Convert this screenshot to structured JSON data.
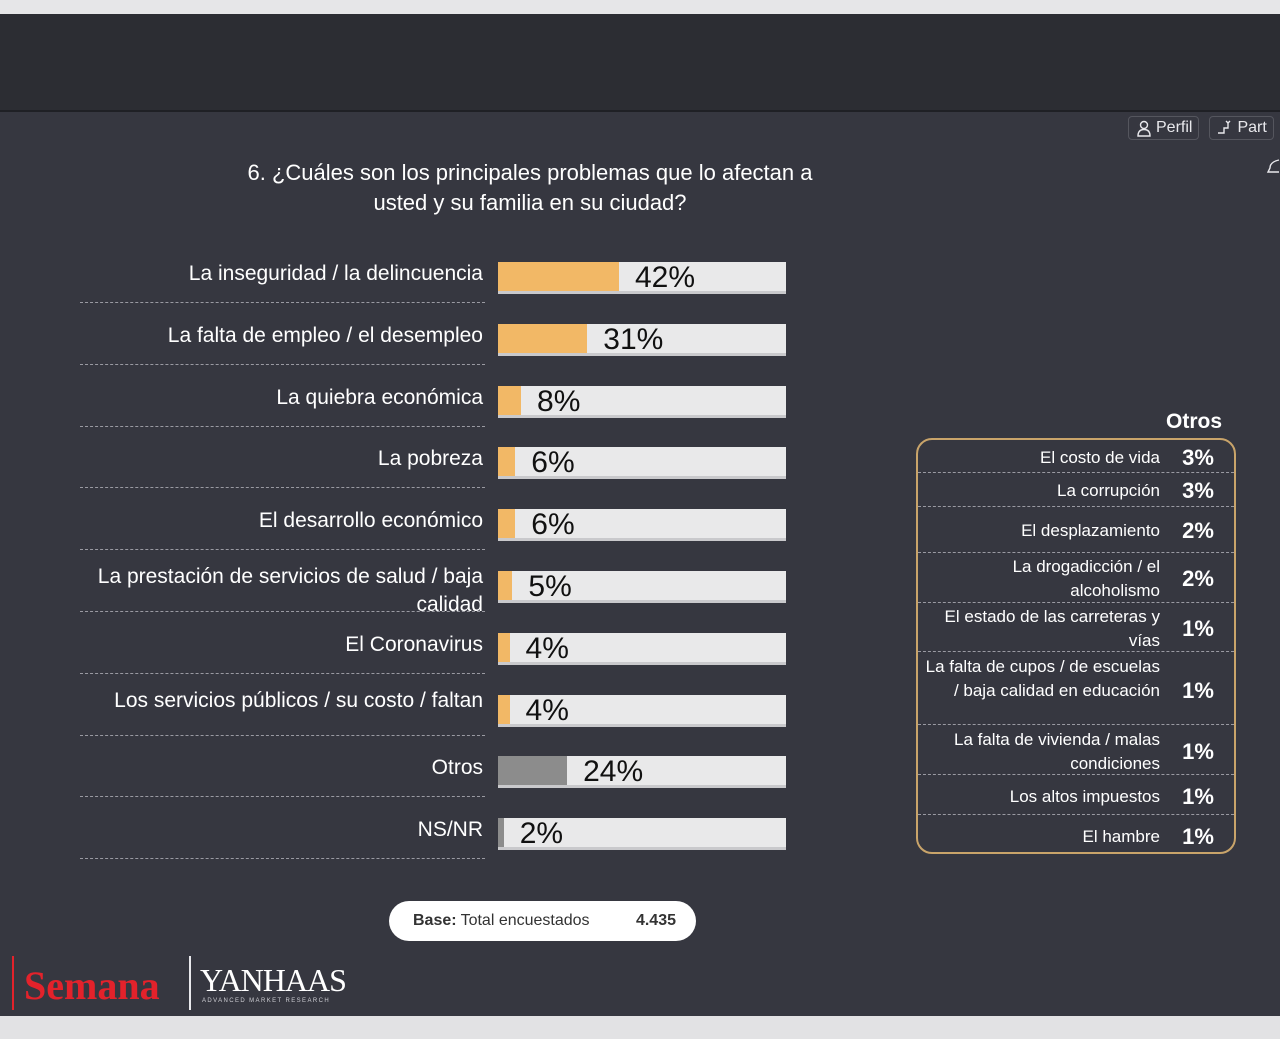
{
  "toolbar": {
    "profile_label": "Perfil",
    "share_label": "Part"
  },
  "question": {
    "line1": "6. ¿Cuáles son los principales problemas que lo afectan a",
    "line2": "usted y su familia en su ciudad?"
  },
  "chart_data": {
    "type": "bar",
    "orientation": "horizontal",
    "categories": [
      "La inseguridad / la delincuencia",
      "La falta de empleo / el desempleo",
      "La quiebra económica",
      "La pobreza",
      "El desarrollo económico",
      "La prestación de servicios de salud / baja calidad",
      "El Coronavirus",
      "Los servicios públicos / su costo / faltan",
      "Otros",
      "NS/NR"
    ],
    "values": [
      42,
      31,
      8,
      6,
      6,
      5,
      4,
      4,
      24,
      2
    ],
    "value_labels": [
      "42%",
      "31%",
      "8%",
      "6%",
      "6%",
      "5%",
      "4%",
      "4%",
      "24%",
      "2%"
    ],
    "xlim": [
      0,
      100
    ],
    "colors": [
      "#f2b866",
      "#f2b866",
      "#f2b866",
      "#f2b866",
      "#f2b866",
      "#f2b866",
      "#f2b866",
      "#f2b866",
      "#8c8c8c",
      "#8c8c8c"
    ],
    "grid": false
  },
  "otros": {
    "title": "Otros",
    "items": [
      {
        "label": "El costo de vida",
        "value": "3%"
      },
      {
        "label": "La corrupción",
        "value": "3%"
      },
      {
        "label": "El desplazamiento",
        "value": "2%"
      },
      {
        "label": "La drogadicción / el alcoholismo",
        "value": "2%"
      },
      {
        "label": "El estado de las carreteras y vías",
        "value": "1%"
      },
      {
        "label": "La falta de cupos / de escuelas / baja calidad en educación",
        "value": "1%"
      },
      {
        "label": "La falta de vivienda / malas condiciones",
        "value": "1%"
      },
      {
        "label": "Los altos impuestos",
        "value": "1%"
      },
      {
        "label": "El hambre",
        "value": "1%"
      }
    ]
  },
  "base": {
    "label_bold": "Base:",
    "label": "Total encuestados",
    "value": "4.435"
  },
  "logos": {
    "semana": "Semana",
    "vanhaas": "YANHAAS",
    "vanhaas_sub": "ADVANCED MARKET RESEARCH"
  },
  "colors": {
    "slide_bg": "#363740",
    "bar_accent": "#f2b866",
    "bar_other": "#8c8c8c",
    "box_border": "#c9a46a",
    "brand_red": "#e3222b"
  }
}
